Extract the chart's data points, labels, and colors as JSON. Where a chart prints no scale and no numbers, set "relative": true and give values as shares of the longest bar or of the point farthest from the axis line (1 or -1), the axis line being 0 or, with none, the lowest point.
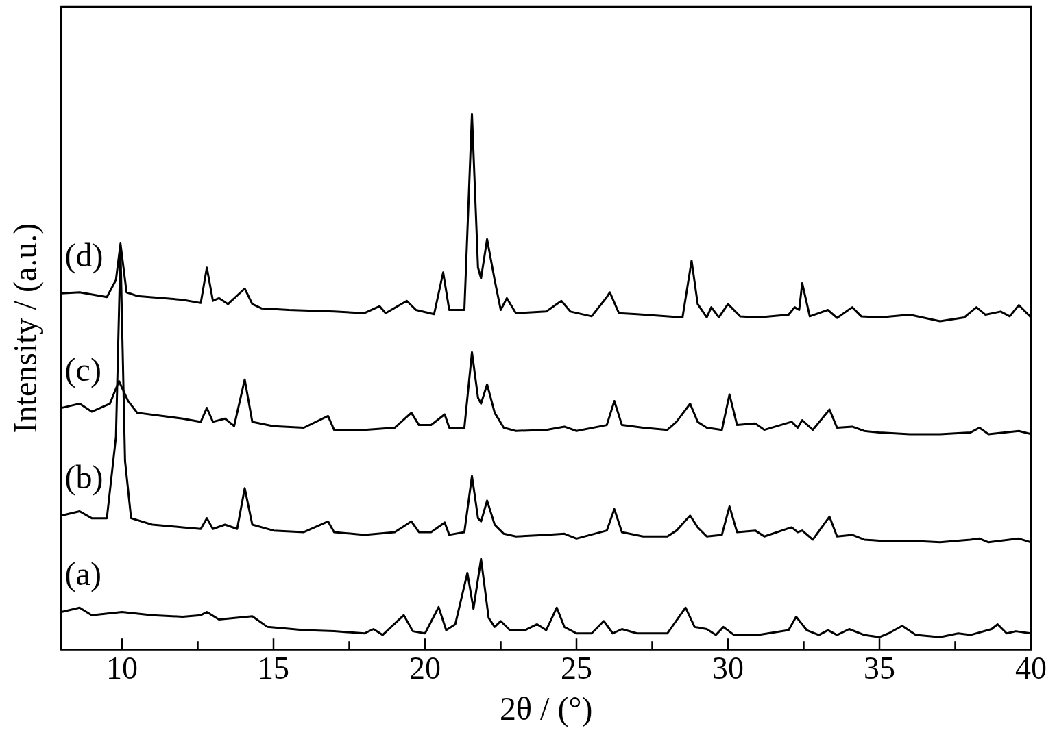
{
  "chart_data": {
    "type": "line",
    "relative": true,
    "xlabel": "2θ / (°)",
    "ylabel": "Intensity / (a.u.)",
    "xlim": [
      8,
      40
    ],
    "xticks": [
      10,
      {
        "value": 12.5,
        "label": null
      },
      15,
      {
        "value": 17.5,
        "label": null
      },
      20,
      {
        "value": 22.5,
        "label": null
      },
      25,
      {
        "value": 27.5,
        "label": null
      },
      30,
      {
        "value": 32.5,
        "label": null
      },
      35,
      {
        "value": 37.5,
        "label": null
      },
      40
    ],
    "grid": false,
    "legend": false,
    "marker": "none",
    "line_style": "solid",
    "series": [
      {
        "name": "(a)",
        "color": "#000000",
        "x": [
          8,
          8.6,
          9,
          10,
          11,
          12,
          12.6,
          12.8,
          13.2,
          14.3,
          14.8,
          16,
          17,
          18,
          18.3,
          18.6,
          19.3,
          19.6,
          20,
          20.45,
          20.7,
          21,
          21.4,
          21.6,
          21.85,
          22.1,
          22.3,
          22.5,
          22.8,
          23.3,
          23.7,
          24,
          24.35,
          24.6,
          25,
          25.5,
          25.9,
          26.2,
          26.5,
          27,
          28,
          28.6,
          28.9,
          29.3,
          29.6,
          29.85,
          30.2,
          31,
          32,
          32.25,
          32.6,
          33,
          33.3,
          33.6,
          34,
          34.5,
          35,
          35.3,
          35.75,
          36.2,
          37,
          37.6,
          38,
          38.7,
          38.9,
          39.2,
          39.5,
          40
        ],
        "values": [
          0.07,
          0.078,
          0.064,
          0.07,
          0.064,
          0.061,
          0.064,
          0.07,
          0.056,
          0.062,
          0.042,
          0.036,
          0.034,
          0.03,
          0.038,
          0.027,
          0.064,
          0.034,
          0.03,
          0.079,
          0.036,
          0.047,
          0.143,
          0.076,
          0.169,
          0.059,
          0.042,
          0.053,
          0.036,
          0.036,
          0.047,
          0.036,
          0.078,
          0.042,
          0.03,
          0.03,
          0.053,
          0.03,
          0.038,
          0.03,
          0.03,
          0.078,
          0.042,
          0.038,
          0.027,
          0.042,
          0.027,
          0.027,
          0.036,
          0.061,
          0.036,
          0.027,
          0.036,
          0.027,
          0.038,
          0.027,
          0.023,
          0.03,
          0.044,
          0.027,
          0.023,
          0.03,
          0.027,
          0.038,
          0.047,
          0.03,
          0.034,
          0.03
        ]
      },
      {
        "name": "(b)",
        "color": "#000000",
        "x": [
          8,
          8.6,
          9,
          9.5,
          9.8,
          9.95,
          10.1,
          10.3,
          11,
          12,
          12.6,
          12.8,
          13,
          13.4,
          13.8,
          14.05,
          14.3,
          15,
          16,
          16.8,
          17,
          18,
          19,
          19.55,
          19.8,
          20.2,
          20.65,
          20.8,
          21.3,
          21.55,
          21.75,
          21.85,
          22.05,
          22.3,
          22.6,
          23,
          24,
          24.6,
          25,
          26,
          26.25,
          26.5,
          27.2,
          28,
          28.3,
          28.75,
          29,
          29.3,
          29.8,
          30.05,
          30.3,
          30.9,
          31.2,
          32.1,
          32.3,
          32.45,
          32.8,
          33.35,
          33.6,
          34.1,
          34.5,
          35,
          36,
          37,
          38,
          38.3,
          38.6,
          39.6,
          40
        ],
        "values": [
          0.25,
          0.258,
          0.245,
          0.245,
          0.397,
          0.746,
          0.352,
          0.245,
          0.233,
          0.228,
          0.225,
          0.245,
          0.225,
          0.233,
          0.225,
          0.301,
          0.233,
          0.222,
          0.219,
          0.239,
          0.219,
          0.214,
          0.219,
          0.239,
          0.219,
          0.219,
          0.237,
          0.214,
          0.219,
          0.324,
          0.245,
          0.239,
          0.278,
          0.233,
          0.216,
          0.211,
          0.214,
          0.216,
          0.207,
          0.222,
          0.262,
          0.219,
          0.211,
          0.211,
          0.222,
          0.25,
          0.228,
          0.211,
          0.214,
          0.267,
          0.219,
          0.222,
          0.211,
          0.228,
          0.219,
          0.222,
          0.205,
          0.248,
          0.211,
          0.214,
          0.205,
          0.203,
          0.203,
          0.2,
          0.205,
          0.207,
          0.2,
          0.207,
          0.2
        ]
      },
      {
        "name": "(c)",
        "color": "#000000",
        "x": [
          8,
          8.6,
          9,
          9.6,
          9.9,
          10.2,
          10.5,
          12,
          12.6,
          12.8,
          13,
          13.4,
          13.7,
          14.05,
          14.3,
          15,
          16,
          16.8,
          17,
          18,
          19,
          19.55,
          19.8,
          20.2,
          20.65,
          20.8,
          21.3,
          21.55,
          21.75,
          21.85,
          22.05,
          22.3,
          22.6,
          23,
          24,
          24.6,
          25,
          26,
          26.25,
          26.5,
          27.2,
          28,
          28.3,
          28.75,
          29,
          29.3,
          29.8,
          30.05,
          30.3,
          30.9,
          31.2,
          32.1,
          32.3,
          32.45,
          32.8,
          33.35,
          33.6,
          34.1,
          34.5,
          35,
          36,
          37,
          38,
          38.3,
          38.6,
          39.6,
          40
        ],
        "values": [
          0.451,
          0.459,
          0.444,
          0.459,
          0.501,
          0.464,
          0.442,
          0.431,
          0.425,
          0.451,
          0.425,
          0.431,
          0.417,
          0.504,
          0.425,
          0.417,
          0.414,
          0.436,
          0.41,
          0.41,
          0.414,
          0.442,
          0.419,
          0.419,
          0.439,
          0.414,
          0.414,
          0.555,
          0.47,
          0.459,
          0.495,
          0.442,
          0.414,
          0.408,
          0.41,
          0.416,
          0.408,
          0.419,
          0.464,
          0.419,
          0.414,
          0.41,
          0.425,
          0.459,
          0.425,
          0.414,
          0.41,
          0.476,
          0.419,
          0.422,
          0.41,
          0.425,
          0.414,
          0.428,
          0.41,
          0.448,
          0.414,
          0.416,
          0.408,
          0.405,
          0.402,
          0.402,
          0.405,
          0.414,
          0.402,
          0.408,
          0.402
        ]
      },
      {
        "name": "(d)",
        "color": "#000000",
        "x": [
          8,
          8.6,
          9.5,
          9.8,
          9.95,
          10.15,
          10.5,
          12,
          12.6,
          12.8,
          13,
          13.2,
          13.5,
          14.05,
          14.3,
          14.6,
          15.5,
          17,
          18,
          18.5,
          18.7,
          19.4,
          19.7,
          20.3,
          20.6,
          20.8,
          21.3,
          21.55,
          21.75,
          21.85,
          22.05,
          22.3,
          22.5,
          22.7,
          23,
          24,
          24.5,
          24.8,
          25.5,
          26,
          26.1,
          26.4,
          27,
          28.5,
          28.8,
          29,
          29.3,
          29.45,
          29.7,
          30,
          30.4,
          31,
          32,
          32.2,
          32.35,
          32.45,
          32.7,
          33.3,
          33.6,
          34.1,
          34.4,
          35,
          36,
          37,
          37.8,
          38.2,
          38.5,
          39,
          39.3,
          39.6,
          40
        ],
        "values": [
          0.665,
          0.667,
          0.658,
          0.69,
          0.758,
          0.667,
          0.66,
          0.653,
          0.647,
          0.713,
          0.651,
          0.656,
          0.645,
          0.674,
          0.645,
          0.637,
          0.634,
          0.631,
          0.628,
          0.641,
          0.628,
          0.651,
          0.634,
          0.626,
          0.704,
          0.634,
          0.634,
          1,
          0.713,
          0.693,
          0.766,
          0.69,
          0.634,
          0.656,
          0.628,
          0.631,
          0.651,
          0.631,
          0.622,
          0.658,
          0.667,
          0.628,
          0.626,
          0.62,
          0.726,
          0.645,
          0.62,
          0.639,
          0.62,
          0.645,
          0.622,
          0.62,
          0.625,
          0.639,
          0.634,
          0.684,
          0.622,
          0.634,
          0.619,
          0.639,
          0.622,
          0.62,
          0.625,
          0.613,
          0.62,
          0.639,
          0.625,
          0.631,
          0.622,
          0.643,
          0.62
        ]
      }
    ]
  }
}
